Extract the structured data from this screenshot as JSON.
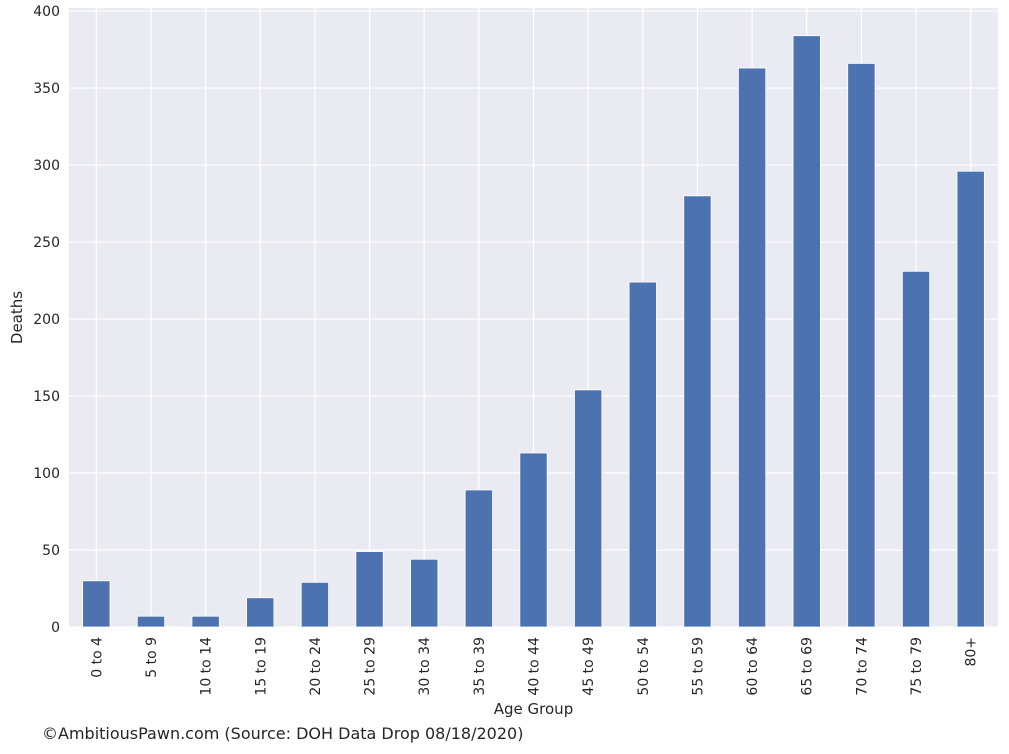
{
  "chart_data": {
    "type": "bar",
    "categories": [
      "0 to 4",
      "5 to 9",
      "10 to 14",
      "15 to 19",
      "20 to 24",
      "25 to 29",
      "30 to 34",
      "35 to 39",
      "40 to 44",
      "45 to 49",
      "50 to 54",
      "55 to 59",
      "60 to 64",
      "65 to 69",
      "70 to 74",
      "75 to 79",
      "80+"
    ],
    "values": [
      30,
      7,
      7,
      19,
      29,
      49,
      44,
      89,
      113,
      154,
      224,
      280,
      363,
      384,
      366,
      231,
      296
    ],
    "title": "",
    "xlabel": "Age Group",
    "ylabel": "Deaths",
    "ylim": [
      0,
      402
    ],
    "yticks": [
      0,
      50,
      100,
      150,
      200,
      250,
      300,
      350,
      400
    ],
    "grid": true,
    "legend": "none",
    "colors": {
      "bar": "#4c72b0",
      "background": "#eaeaf2",
      "grid": "#ffffff"
    }
  },
  "footer": {
    "credit": "©AmbitiousPawn.com (Source: DOH Data Drop 08/18/2020)"
  }
}
